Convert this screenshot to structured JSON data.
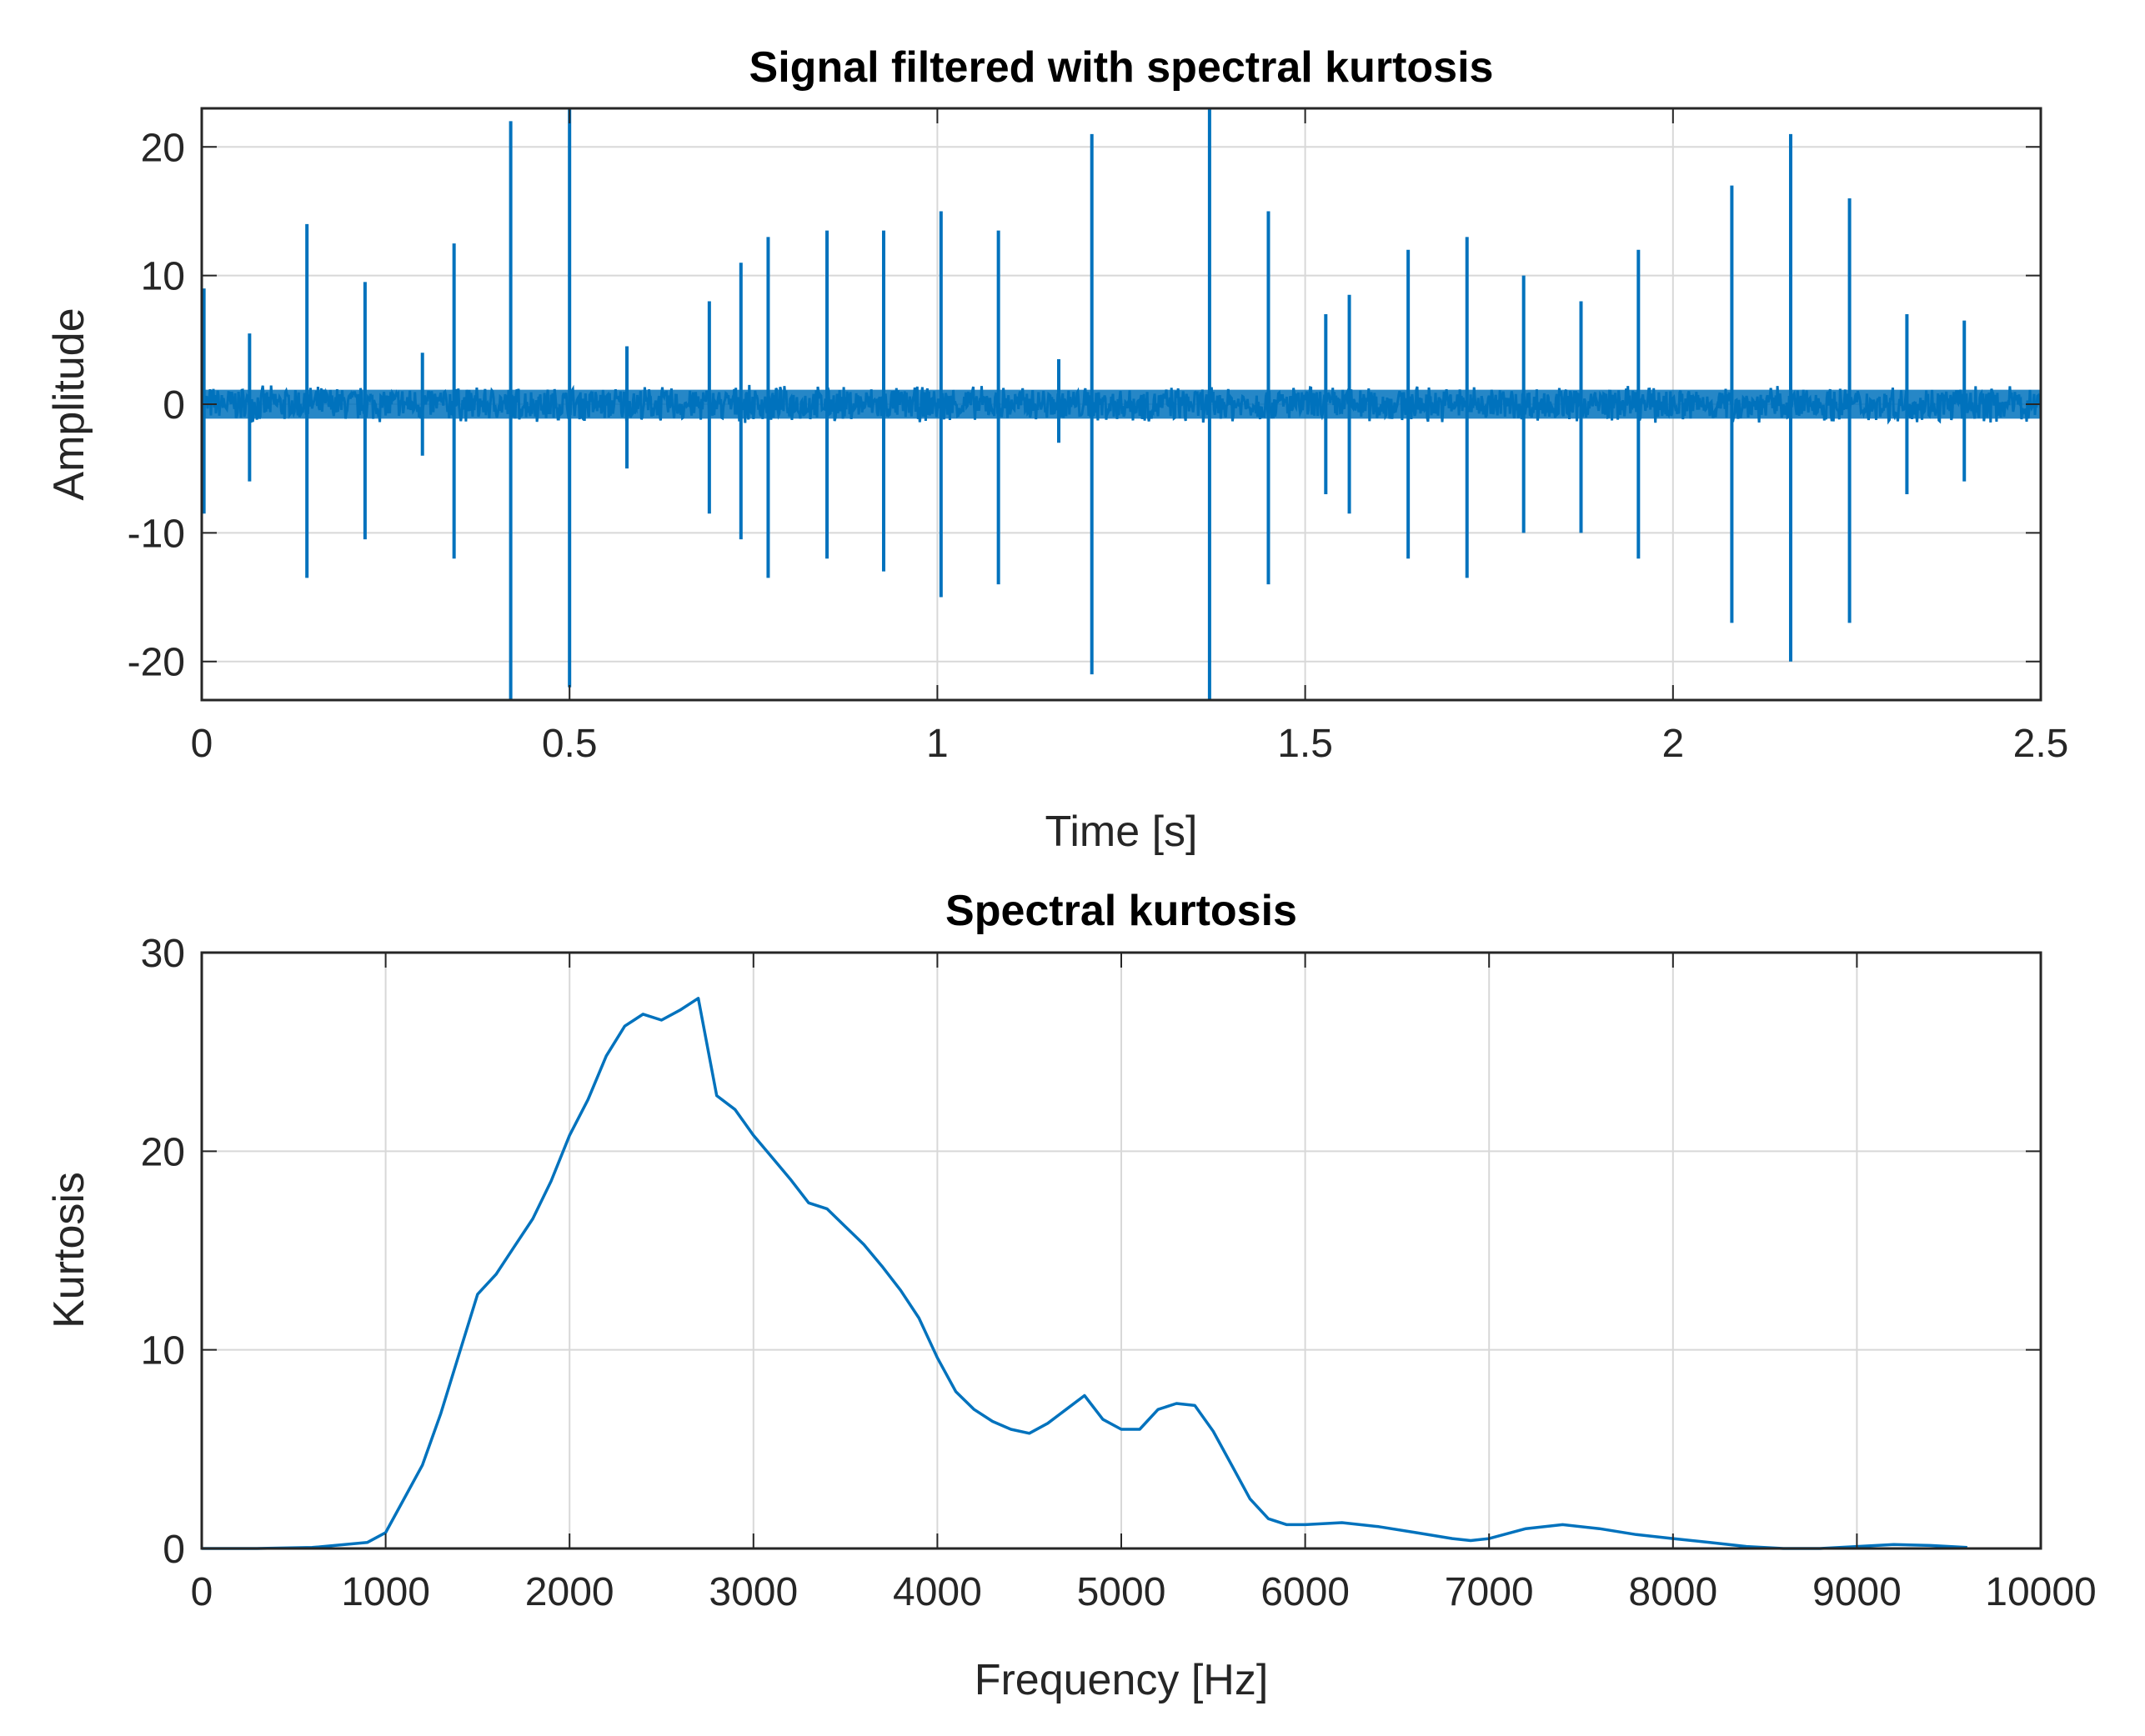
{
  "colors": {
    "line": "#0072BD",
    "grid": "#d8d8d8",
    "axis": "#262626",
    "background": "#ffffff"
  },
  "chart_data": [
    {
      "type": "line",
      "title": "Signal filtered with spectral kurtosis",
      "xlabel": "Time [s]",
      "ylabel": "Amplitude",
      "xlim": [
        0,
        2.5
      ],
      "ylim": [
        -23,
        23
      ],
      "xticks": [
        0,
        0.5,
        1,
        1.5,
        2,
        2.5
      ],
      "xtick_labels": [
        "0",
        "0.5",
        "1",
        "1.5",
        "2",
        "2.5"
      ],
      "yticks": [
        20,
        10,
        0,
        -10,
        -20
      ],
      "ytick_labels": [
        "20",
        "10",
        "0",
        "-10",
        "-20"
      ],
      "grid": true,
      "noise_band": [
        -1.5,
        1.5
      ],
      "spikes": [
        {
          "t": 0.003,
          "max": 9,
          "min": -8.5
        },
        {
          "t": 0.065,
          "max": 5.5,
          "min": -6
        },
        {
          "t": 0.143,
          "max": 14,
          "min": -13.5
        },
        {
          "t": 0.222,
          "max": 9.5,
          "min": -10.5
        },
        {
          "t": 0.3,
          "max": 4,
          "min": -4
        },
        {
          "t": 0.343,
          "max": 12.5,
          "min": -12
        },
        {
          "t": 0.42,
          "max": 22,
          "min": -23
        },
        {
          "t": 0.5,
          "max": 23,
          "min": -22
        },
        {
          "t": 0.578,
          "max": 4.5,
          "min": -5
        },
        {
          "t": 0.69,
          "max": 8,
          "min": -8.5
        },
        {
          "t": 0.733,
          "max": 11,
          "min": -10.5
        },
        {
          "t": 0.77,
          "max": 13,
          "min": -13.5
        },
        {
          "t": 0.85,
          "max": 13.5,
          "min": -12
        },
        {
          "t": 0.927,
          "max": 13.5,
          "min": -13
        },
        {
          "t": 1.005,
          "max": 15,
          "min": -15
        },
        {
          "t": 1.083,
          "max": 13.5,
          "min": -14
        },
        {
          "t": 1.165,
          "max": 3.5,
          "min": -3
        },
        {
          "t": 1.21,
          "max": 21,
          "min": -21
        },
        {
          "t": 1.37,
          "max": 23,
          "min": -23
        },
        {
          "t": 1.45,
          "max": 15,
          "min": -14
        },
        {
          "t": 1.528,
          "max": 7,
          "min": -7
        },
        {
          "t": 1.56,
          "max": 8.5,
          "min": -8.5
        },
        {
          "t": 1.64,
          "max": 12,
          "min": -12
        },
        {
          "t": 1.72,
          "max": 13,
          "min": -13.5
        },
        {
          "t": 1.797,
          "max": 10,
          "min": -10
        },
        {
          "t": 1.875,
          "max": 8,
          "min": -10
        },
        {
          "t": 1.953,
          "max": 12,
          "min": -12
        },
        {
          "t": 2.08,
          "max": 17,
          "min": -17
        },
        {
          "t": 2.16,
          "max": 21,
          "min": -20
        },
        {
          "t": 2.24,
          "max": 16,
          "min": -17
        },
        {
          "t": 2.318,
          "max": 7,
          "min": -7
        },
        {
          "t": 2.396,
          "max": 6.5,
          "min": -6
        }
      ]
    },
    {
      "type": "line",
      "title": "Spectral kurtosis",
      "xlabel": "Frequency [Hz]",
      "ylabel": "Kurtosis",
      "xlim": [
        0,
        10000
      ],
      "ylim": [
        0,
        30
      ],
      "xticks": [
        0,
        1000,
        2000,
        3000,
        4000,
        5000,
        6000,
        7000,
        8000,
        9000,
        10000
      ],
      "xtick_labels": [
        "0",
        "1000",
        "2000",
        "3000",
        "4000",
        "5000",
        "6000",
        "7000",
        "8000",
        "9000",
        "10000"
      ],
      "yticks": [
        30,
        20,
        10,
        0
      ],
      "ytick_labels": [
        "30",
        "20",
        "10",
        "0"
      ],
      "grid": true,
      "x": [
        0,
        300,
        600,
        900,
        1000,
        1100,
        1200,
        1300,
        1400,
        1500,
        1600,
        1700,
        1800,
        1900,
        2000,
        2100,
        2200,
        2300,
        2400,
        2500,
        2600,
        2700,
        2800,
        2900,
        3000,
        3100,
        3200,
        3300,
        3400,
        3500,
        3600,
        3700,
        3800,
        3900,
        4000,
        4100,
        4200,
        4300,
        4400,
        4500,
        4600,
        4700,
        4800,
        4900,
        5000,
        5100,
        5200,
        5300,
        5400,
        5500,
        5600,
        5700,
        5800,
        5900,
        6000,
        6200,
        6400,
        6600,
        6800,
        6900,
        7000,
        7200,
        7400,
        7600,
        7800,
        8000,
        8200,
        8400,
        8600,
        8800,
        9000,
        9200,
        9400,
        9600
      ],
      "y": [
        0,
        0,
        0.05,
        0.3,
        0.8,
        2.5,
        4.2,
        6.8,
        9.8,
        12.8,
        13.8,
        15.2,
        16.6,
        18.5,
        20.8,
        22.6,
        24.8,
        26.3,
        26.9,
        26.6,
        27.1,
        27.7,
        22.8,
        22.1,
        20.8,
        19.7,
        18.6,
        17.4,
        17.1,
        16.2,
        15.3,
        14.2,
        13.0,
        11.6,
        9.6,
        7.9,
        7.0,
        6.4,
        6.0,
        5.8,
        6.3,
        7.0,
        7.7,
        6.5,
        6.0,
        6.0,
        7.0,
        7.3,
        7.2,
        5.9,
        4.2,
        2.5,
        1.5,
        1.2,
        1.2,
        1.3,
        1.1,
        0.8,
        0.5,
        0.4,
        0.5,
        1.0,
        1.2,
        1.0,
        0.7,
        0.5,
        0.3,
        0.1,
        0,
        0,
        0.1,
        0.2,
        0.15,
        0.05
      ]
    }
  ]
}
